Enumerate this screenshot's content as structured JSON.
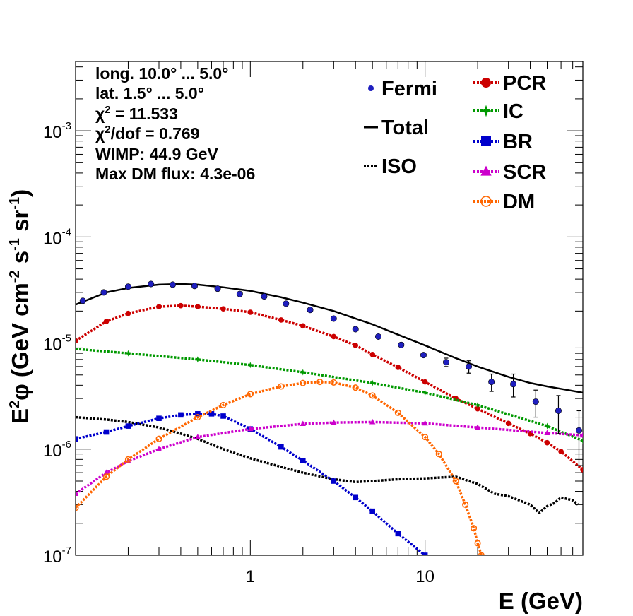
{
  "chart_data": {
    "type": "line",
    "xlabel": "E (GeV)",
    "ylabel_parts": [
      "E",
      "2",
      "φ (GeV cm",
      "-2",
      " s",
      "-1",
      " sr",
      "-1",
      ")"
    ],
    "xscale": "log",
    "yscale": "log",
    "xlim": [
      0.1,
      80
    ],
    "ylim": [
      1e-07,
      0.0045
    ],
    "grid": false,
    "x_ticks": [
      {
        "value": 1,
        "label": "1"
      },
      {
        "value": 10,
        "label": "10"
      }
    ],
    "y_ticks": [
      {
        "value": 1e-07,
        "base": "10",
        "exp": "-7"
      },
      {
        "value": 1e-06,
        "base": "10",
        "exp": "-6"
      },
      {
        "value": 1e-05,
        "base": "10",
        "exp": "-5"
      },
      {
        "value": 0.0001,
        "base": "10",
        "exp": "-4"
      },
      {
        "value": 0.001,
        "base": "10",
        "exp": "-3"
      }
    ],
    "annotations": [
      {
        "segments": [
          {
            "t": "long. 10.0° ... 5.0°"
          }
        ]
      },
      {
        "segments": [
          {
            "t": "lat. 1.5° ... 5.0°"
          }
        ]
      },
      {
        "segments": [
          {
            "t": "χ"
          },
          {
            "t": "2",
            "sup": true
          },
          {
            "t": " = 11.533"
          }
        ]
      },
      {
        "segments": [
          {
            "t": "χ"
          },
          {
            "t": "2",
            "sup": true
          },
          {
            "t": "/dof = 0.769"
          }
        ]
      },
      {
        "segments": [
          {
            "t": "WIMP: 44.9 GeV"
          }
        ]
      },
      {
        "segments": [
          {
            "t": "Max DM flux: 4.3e-06"
          }
        ]
      }
    ],
    "legend_position": "top-right",
    "legend": [
      {
        "name": "Fermi",
        "series": "Fermi"
      },
      {
        "name": "Total",
        "series": "Total"
      },
      {
        "name": "ISO",
        "series": "ISO"
      },
      {
        "name": "PCR",
        "series": "PCR"
      },
      {
        "name": "IC",
        "series": "IC"
      },
      {
        "name": "BR",
        "series": "BR"
      },
      {
        "name": "SCR",
        "series": "SCR"
      },
      {
        "name": "DM",
        "series": "DM"
      }
    ],
    "data_points": {
      "name": "Fermi",
      "color": "#1f1fbf",
      "x": [
        0.11,
        0.145,
        0.2,
        0.27,
        0.36,
        0.48,
        0.65,
        0.87,
        1.2,
        1.6,
        2.2,
        3.0,
        4.0,
        5.4,
        7.3,
        9.8,
        13.2,
        17.8,
        24,
        32,
        43,
        58,
        76
      ],
      "y": [
        2.5e-05,
        3e-05,
        3.4e-05,
        3.6e-05,
        3.55e-05,
        3.45e-05,
        3.25e-05,
        2.9e-05,
        2.75e-05,
        2.35e-05,
        2.05e-05,
        1.7e-05,
        1.35e-05,
        1.15e-05,
        9.6e-06,
        7.7e-06,
        6.6e-06,
        6e-06,
        4.3e-06,
        4.1e-06,
        2.8e-06,
        2.3e-06,
        1.5e-06
      ],
      "yerr": [
        0,
        0,
        0,
        0,
        0,
        0,
        0,
        0,
        0,
        0,
        0,
        0,
        0,
        0,
        0,
        0,
        6e-07,
        8e-07,
        8e-07,
        1e-06,
        8e-07,
        9e-07,
        8e-07
      ]
    },
    "series": [
      {
        "name": "Total",
        "color": "#000000",
        "style": "solid",
        "marker": "none",
        "x": [
          0.1,
          0.15,
          0.2,
          0.3,
          0.4,
          0.5,
          0.7,
          1,
          1.5,
          2,
          3,
          4,
          5,
          7,
          10,
          15,
          20,
          30,
          40,
          50,
          60,
          80
        ],
        "y": [
          2.3e-05,
          3e-05,
          3.3e-05,
          3.55e-05,
          3.6e-05,
          3.55e-05,
          3.35e-05,
          3.1e-05,
          2.7e-05,
          2.4e-05,
          2e-05,
          1.7e-05,
          1.5e-05,
          1.2e-05,
          9.5e-06,
          7.2e-06,
          6e-06,
          4.8e-06,
          4.2e-06,
          3.9e-06,
          3.7e-06,
          3.4e-06
        ]
      },
      {
        "name": "ISO",
        "color": "#000000",
        "style": "dotted",
        "marker": "none",
        "x": [
          0.1,
          0.15,
          0.2,
          0.3,
          0.4,
          0.5,
          0.7,
          1,
          1.5,
          2,
          3,
          4,
          5,
          7,
          10,
          15,
          20,
          25,
          30,
          40,
          45,
          50,
          55,
          60,
          70,
          75
        ],
        "y": [
          2e-06,
          1.9e-06,
          1.8e-06,
          1.6e-06,
          1.4e-06,
          1.25e-06,
          1e-06,
          8.2e-07,
          6.8e-07,
          6e-07,
          5.2e-07,
          4.9e-07,
          5e-07,
          5.2e-07,
          5.3e-07,
          5.5e-07,
          4.7e-07,
          3.8e-07,
          3.6e-07,
          3e-07,
          2.5e-07,
          2.9e-07,
          3.1e-07,
          3.5e-07,
          3.3e-07,
          3e-07
        ]
      },
      {
        "name": "PCR",
        "color": "#cc0000",
        "style": "dotted",
        "marker": "circle",
        "x": [
          0.1,
          0.15,
          0.2,
          0.3,
          0.4,
          0.5,
          0.7,
          1,
          1.5,
          2,
          3,
          4,
          5,
          7,
          10,
          15,
          20,
          30,
          40,
          50,
          60,
          80
        ],
        "y": [
          1.05e-05,
          1.6e-05,
          1.9e-05,
          2.2e-05,
          2.25e-05,
          2.2e-05,
          2.1e-05,
          1.95e-05,
          1.65e-05,
          1.45e-05,
          1.15e-05,
          9.5e-06,
          7.8e-06,
          5.9e-06,
          4.3e-06,
          3e-06,
          2.4e-06,
          1.75e-06,
          1.4e-06,
          1.15e-06,
          9.5e-07,
          6.4e-07
        ]
      },
      {
        "name": "IC",
        "color": "#009900",
        "style": "dotted",
        "marker": "star",
        "x": [
          0.1,
          0.2,
          0.5,
          1,
          2,
          5,
          10,
          20,
          50,
          80
        ],
        "y": [
          8.8e-06,
          8e-06,
          7e-06,
          6.2e-06,
          5.3e-06,
          4.2e-06,
          3.4e-06,
          2.6e-06,
          1.65e-06,
          1.2e-06
        ]
      },
      {
        "name": "BR",
        "color": "#0000cc",
        "style": "dotted",
        "marker": "square",
        "x": [
          0.1,
          0.15,
          0.2,
          0.3,
          0.4,
          0.5,
          0.6,
          0.7,
          1,
          1.5,
          2,
          3,
          4,
          5,
          7,
          10
        ],
        "y": [
          1.25e-06,
          1.45e-06,
          1.65e-06,
          1.95e-06,
          2.1e-06,
          2.15e-06,
          2.15e-06,
          2.05e-06,
          1.55e-06,
          1.05e-06,
          7.8e-07,
          5e-07,
          3.5e-07,
          2.6e-07,
          1.6e-07,
          1e-07
        ]
      },
      {
        "name": "SCR",
        "color": "#cc00cc",
        "style": "dotted",
        "marker": "triangle",
        "x": [
          0.1,
          0.15,
          0.2,
          0.3,
          0.5,
          1,
          2,
          3,
          5,
          10,
          20,
          50,
          80
        ],
        "y": [
          3.8e-07,
          6e-07,
          7.7e-07,
          1e-06,
          1.3e-06,
          1.55e-06,
          1.73e-06,
          1.78e-06,
          1.8e-06,
          1.75e-06,
          1.6e-06,
          1.42e-06,
          1.35e-06
        ]
      },
      {
        "name": "DM",
        "color": "#ff6600",
        "style": "dotted",
        "marker": "open-circle",
        "x": [
          0.1,
          0.15,
          0.2,
          0.3,
          0.5,
          0.7,
          1,
          1.5,
          2,
          2.5,
          3,
          4,
          5,
          7,
          10,
          12,
          15,
          17,
          19,
          20,
          21
        ],
        "y": [
          2.8e-07,
          5.5e-07,
          8e-07,
          1.25e-06,
          2e-06,
          2.6e-06,
          3.3e-06,
          3.9e-06,
          4.2e-06,
          4.3e-06,
          4.25e-06,
          3.8e-06,
          3.2e-06,
          2.2e-06,
          1.3e-06,
          9e-07,
          5e-07,
          3e-07,
          1.8e-07,
          1.3e-07,
          1e-07
        ]
      }
    ]
  }
}
